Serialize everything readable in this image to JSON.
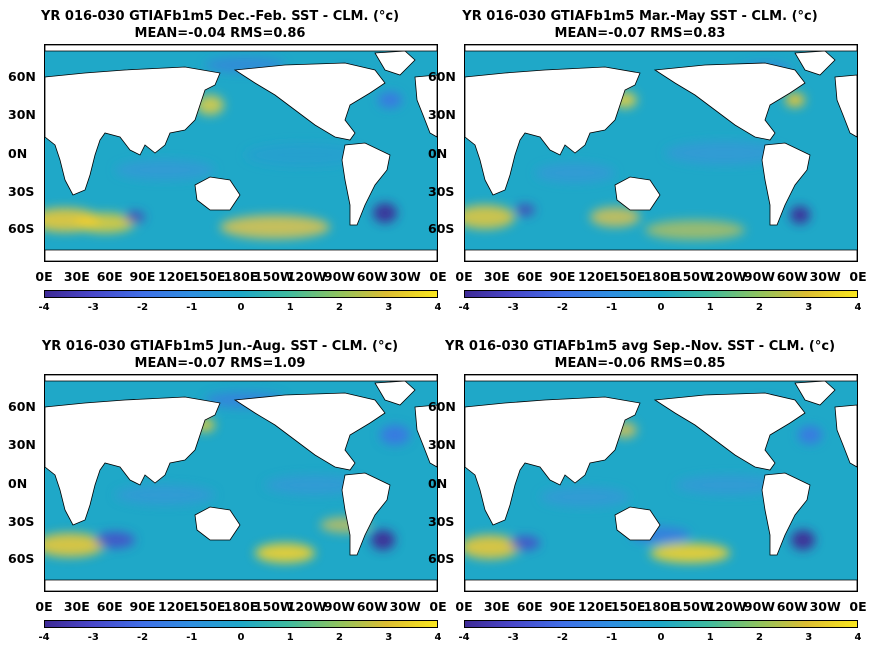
{
  "panels": [
    {
      "title_line1": "YR 016-030 GTIAFb1m5  Dec.-Feb. SST - CLM. (°c)",
      "title_line2": "MEAN=-0.04   RMS=0.86",
      "season": "DJF"
    },
    {
      "title_line1": "YR 016-030 GTIAFb1m5 Mar.-May SST - CLM. (°c)",
      "title_line2": "MEAN=-0.07   RMS=0.83",
      "season": "MAM"
    },
    {
      "title_line1": "YR 016-030 GTIAFb1m5 Jun.-Aug. SST - CLM. (°c)",
      "title_line2": "MEAN=-0.07   RMS=1.09",
      "season": "JJA"
    },
    {
      "title_line1": "YR 016-030 GTIAFb1m5 avg Sep.-Nov. SST - CLM. (°c)",
      "title_line2": "MEAN=-0.06   RMS=0.85",
      "season": "SON"
    }
  ],
  "lat_labels": [
    "60N",
    "30N",
    "0N",
    "30S",
    "60S"
  ],
  "lon_labels": [
    "0E",
    "30E",
    "60E",
    "90E",
    "120E",
    "150E",
    "180E",
    "150W",
    "120W",
    "90W",
    "60W",
    "30W",
    "0E"
  ],
  "colorbar_ticks": [
    "-4",
    "-3",
    "-2",
    "-1",
    "0",
    "1",
    "2",
    "3",
    "4"
  ],
  "colors": {
    "background_field": "#1fa8c8",
    "land": "#ffffff",
    "cold_anomaly": "#3e2a96",
    "warm_anomaly": "#f9e61f"
  }
}
